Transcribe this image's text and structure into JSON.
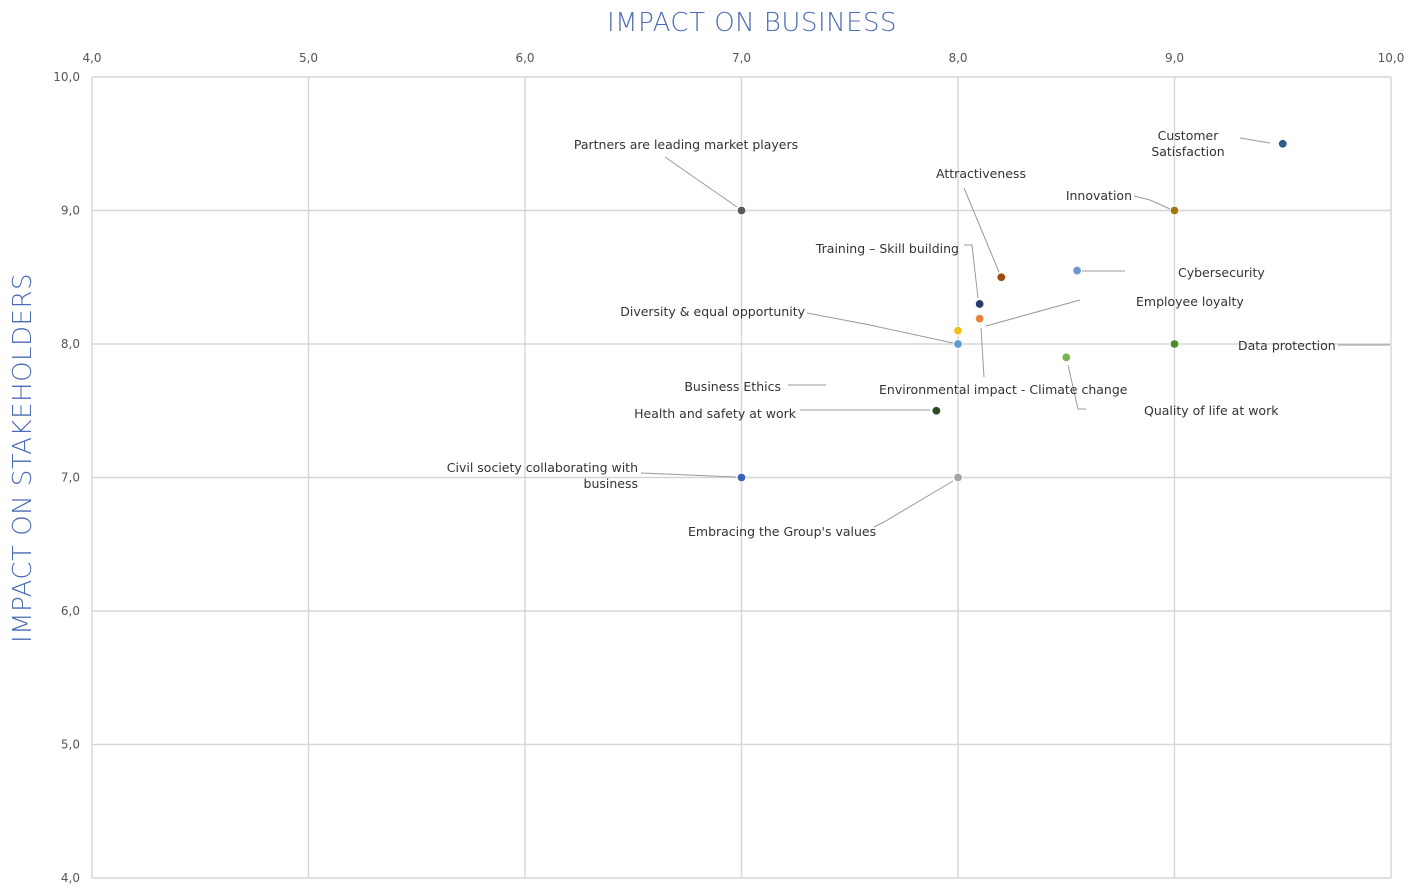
{
  "chart_data": {
    "type": "scatter",
    "xlabel": "IMPACT ON BUSINESS",
    "ylabel": "IMPACT ON STAKEHOLDERS",
    "xlim": [
      4,
      10
    ],
    "ylim": [
      4,
      10
    ],
    "x_ticks": [
      "4,0",
      "5,0",
      "6,0",
      "7,0",
      "8,0",
      "9,0",
      "10,0"
    ],
    "y_ticks": [
      "4,0",
      "5,0",
      "6,0",
      "7,0",
      "8,0",
      "9,0",
      "10,0"
    ],
    "grid": true,
    "title_color": "#4a6bb5",
    "points": [
      {
        "label": [
          "Customer",
          "Satisfaction"
        ],
        "x": 9.5,
        "y": 9.5,
        "color": "#2f5c8a"
      },
      {
        "label": [
          "Partners are leading market players"
        ],
        "x": 7.0,
        "y": 9.0,
        "color": "#5a5a5a"
      },
      {
        "label": [
          "Innovation"
        ],
        "x": 9.0,
        "y": 9.0,
        "color": "#a07a10"
      },
      {
        "label": [
          "Attractiveness"
        ],
        "x": 8.2,
        "y": 8.5,
        "color": "#9c4a10"
      },
      {
        "label": [
          "Cybersecurity"
        ],
        "x": 8.55,
        "y": 8.55,
        "color": "#6f98cc"
      },
      {
        "label": [
          "Training – Skill building"
        ],
        "x": 8.1,
        "y": 8.3,
        "color": "#243b6e"
      },
      {
        "label": [
          "Employee loyalty"
        ],
        "x": 8.1,
        "y": 8.19,
        "color": "#e8823c"
      },
      {
        "label": [
          "Diversity & equal opportunity"
        ],
        "x": 8.0,
        "y": 8.0,
        "color": "#5b9bd5"
      },
      {
        "label": [
          "Business Ethics"
        ],
        "x": 8.0,
        "y": 8.1,
        "color": "#f2c01a"
      },
      {
        "label": [
          "Data protection"
        ],
        "x": 9.0,
        "y": 8.0,
        "color": "#4a8a2a"
      },
      {
        "label": [
          "Environmental impact - Climate change"
        ],
        "x": 8.1,
        "y": 8.19,
        "color": "#e8823c"
      },
      {
        "label": [
          "Quality of life at work"
        ],
        "x": 8.5,
        "y": 7.9,
        "color": "#78b450"
      },
      {
        "label": [
          "Health and safety at work"
        ],
        "x": 7.9,
        "y": 7.5,
        "color": "#2e4a1f"
      },
      {
        "label": [
          "Civil society collaborating with",
          "business"
        ],
        "x": 7.0,
        "y": 7.0,
        "color": "#3a64b8"
      },
      {
        "label": [
          "Embracing the Group's values"
        ],
        "x": 8.0,
        "y": 7.0,
        "color": "#a5a5a5"
      }
    ]
  }
}
